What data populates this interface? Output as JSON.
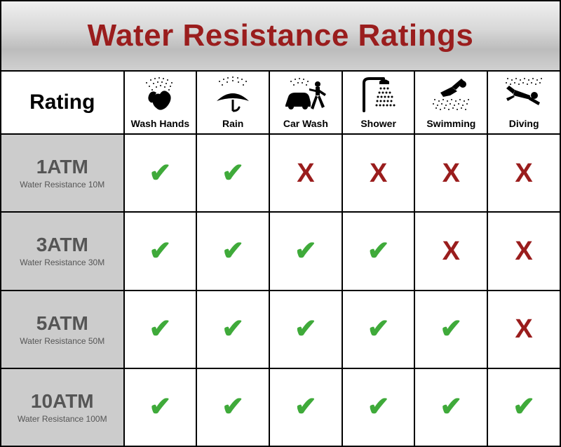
{
  "title": "Water Resistance Ratings",
  "title_color": "#9a1d1d",
  "header_label": "Rating",
  "activities": [
    {
      "label": "Wash Hands",
      "icon": "wash-hands-icon"
    },
    {
      "label": "Rain",
      "icon": "rain-icon"
    },
    {
      "label": "Car Wash",
      "icon": "car-wash-icon"
    },
    {
      "label": "Shower",
      "icon": "shower-icon"
    },
    {
      "label": "Swimming",
      "icon": "swimming-icon"
    },
    {
      "label": "Diving",
      "icon": "diving-icon"
    }
  ],
  "ratings": [
    {
      "main": "1ATM",
      "sub": "Water Resistance 10M"
    },
    {
      "main": "3ATM",
      "sub": "Water Resistance 30M"
    },
    {
      "main": "5ATM",
      "sub": "Water Resistance 50M"
    },
    {
      "main": "10ATM",
      "sub": "Water Resistance 100M"
    }
  ],
  "values": [
    [
      true,
      true,
      false,
      false,
      false,
      false
    ],
    [
      true,
      true,
      true,
      true,
      false,
      false
    ],
    [
      true,
      true,
      true,
      true,
      true,
      false
    ],
    [
      true,
      true,
      true,
      true,
      true,
      true
    ]
  ],
  "style": {
    "check_glyph": "✔",
    "check_color": "#3faa3a",
    "cross_glyph": "X",
    "cross_color": "#9a1d1d",
    "rating_cell_bg": "#cccccc",
    "rating_text_color": "#555555",
    "border_color": "#000000",
    "icon_color": "#000000",
    "title_bg_gradient": [
      "#f0f0f0",
      "#d8d8d8",
      "#bcbcbc",
      "#d0d0d0"
    ],
    "rating_main_fontsize": 28,
    "rating_sub_fontsize": 12,
    "activity_label_fontsize": 14,
    "title_fontsize": 44,
    "mark_fontsize": 38
  }
}
